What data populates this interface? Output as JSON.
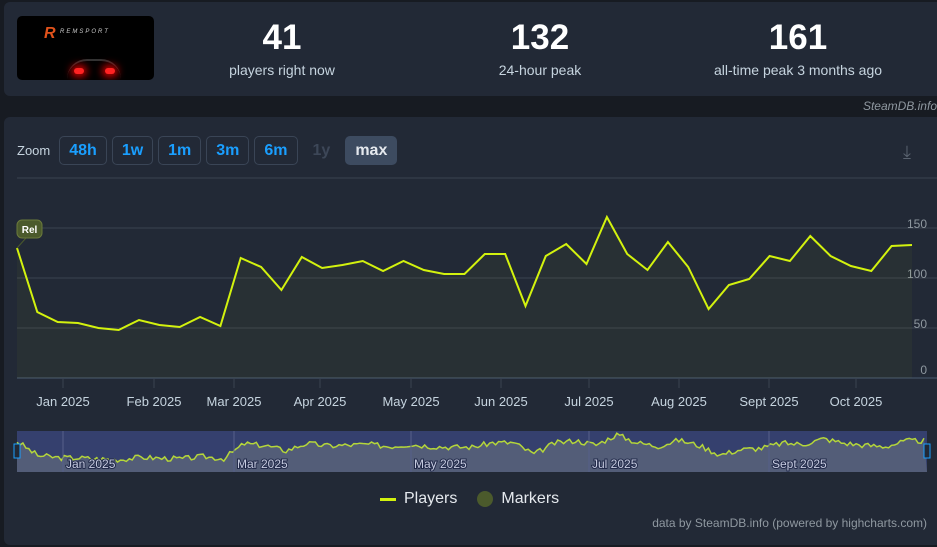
{
  "header": {
    "logo_text": "REMSPORT",
    "stats": [
      {
        "value": "41",
        "label": "players right now"
      },
      {
        "value": "132",
        "label": "24-hour peak"
      },
      {
        "value": "161",
        "label": "all-time peak 3 months ago"
      }
    ],
    "credit": "SteamDB.info"
  },
  "zoom": {
    "label": "Zoom",
    "buttons": [
      "48h",
      "1w",
      "1m",
      "3m",
      "6m",
      "1y",
      "max"
    ],
    "active": "max",
    "disabled": "1y"
  },
  "legend": {
    "players": "Players",
    "markers": "Markers"
  },
  "footer": "data by SteamDB.info (powered by highcharts.com)",
  "colors": {
    "line": "#d3f20e",
    "marker": "#4b5a2c"
  },
  "chart_data": {
    "type": "line",
    "start_date": "2024-12-16",
    "interval": "weekly",
    "series": [
      {
        "name": "Players",
        "values": [
          130,
          66,
          56,
          55,
          50,
          48,
          58,
          53,
          51,
          61,
          52,
          120,
          111,
          88,
          121,
          110,
          113,
          117,
          107,
          117,
          108,
          104,
          104,
          124,
          124,
          72,
          122,
          134,
          114,
          161,
          124,
          108,
          136,
          111,
          69,
          93,
          99,
          122,
          117,
          142,
          122,
          112,
          107,
          132,
          133
        ]
      }
    ],
    "yticks": [
      0,
      50,
      100,
      150
    ],
    "ylim": [
      0,
      200
    ],
    "xticks": [
      "Jan 2025",
      "Feb 2025",
      "Mar 2025",
      "Apr 2025",
      "May 2025",
      "Jun 2025",
      "Jul 2025",
      "Aug 2025",
      "Sept 2025",
      "Oct 2025"
    ],
    "navigator_ticks": [
      "Jan 2025",
      "Mar 2025",
      "May 2025",
      "Jul 2025",
      "Sept 2025"
    ],
    "markers": [
      {
        "label": "Rel",
        "index": 0
      }
    ]
  }
}
